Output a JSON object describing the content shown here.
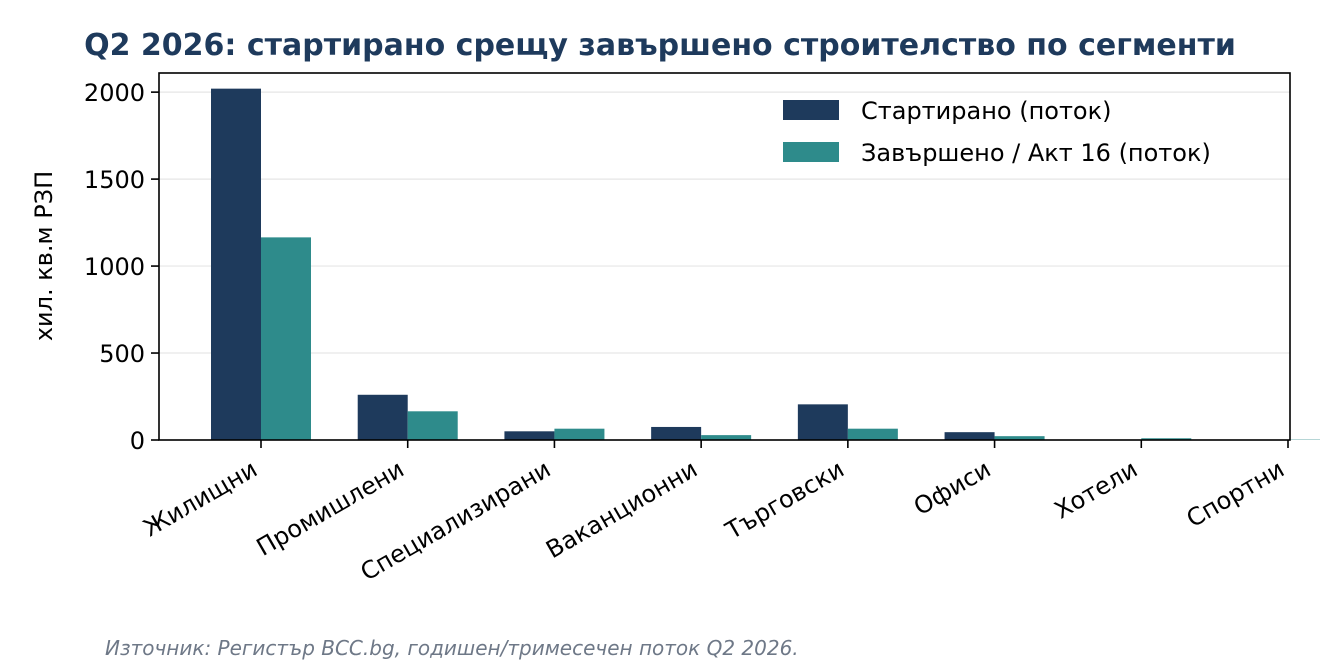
{
  "chart_data": {
    "type": "bar",
    "title": "Q2 2026: стартирано срещу завършено строителство по сегменти",
    "ylabel": "хил. кв.м РЗП",
    "xlabel": "",
    "categories": [
      "Жилищни",
      "Промишлени",
      "Специализирани",
      "Ваканционни",
      "Търговски",
      "Офиси",
      "Хотели",
      "Спортни"
    ],
    "series": [
      {
        "name": "Стартирано (поток)",
        "color": "#1e3a5c",
        "values": [
          2020,
          260,
          50,
          75,
          205,
          45,
          2,
          1
        ]
      },
      {
        "name": "Завършено / Акт 16 (поток)",
        "color": "#2e8b8b",
        "values": [
          1165,
          165,
          65,
          28,
          65,
          22,
          10,
          2
        ]
      }
    ],
    "ylim": [
      0,
      2110
    ],
    "yticks": [
      0,
      500,
      1000,
      1500,
      2000
    ],
    "grid": true,
    "legend_position": "top-right",
    "source": "Източник: Регистър ВСС.bg, годишен/тримесечен поток Q2 2026."
  }
}
